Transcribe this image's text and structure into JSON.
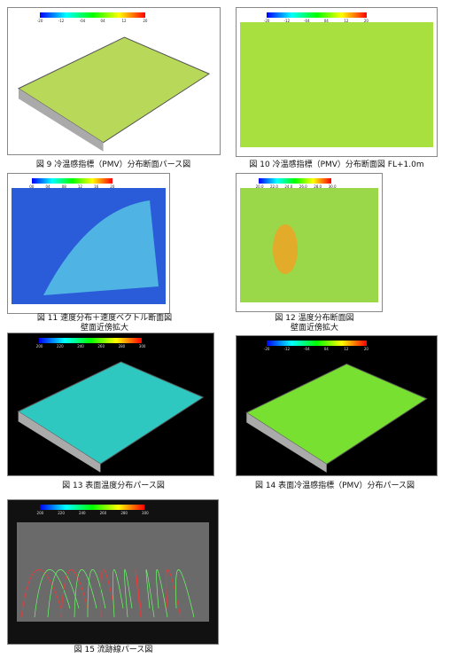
{
  "figures": [
    {
      "caption": [
        "図 9  冷温感指標（PMV）分布断面パース図"
      ],
      "scale": [
        "-20",
        "-12",
        "-04",
        "04",
        "12",
        "20"
      ]
    },
    {
      "caption": [
        "図 10  冷温感指標（PMV）分布断面図  FL+1.0m"
      ],
      "scale": [
        "-20",
        "-12",
        "-04",
        "04",
        "12",
        "20"
      ]
    },
    {
      "caption": [
        "図 11  速度分布＋速度ベクトル断面図",
        "壁面近傍拡大"
      ],
      "scale": [
        "00",
        "04",
        "08",
        "12",
        "16",
        "20"
      ]
    },
    {
      "caption": [
        "図 12  温度分布断面図",
        "壁面近傍拡大"
      ],
      "scale": [
        "20.0",
        "22.0",
        "24.0",
        "26.0",
        "28.0",
        "30.0"
      ]
    },
    {
      "caption": [
        "図 13  表面温度分布パース図"
      ],
      "scale": [
        "200",
        "220",
        "240",
        "260",
        "280",
        "300"
      ]
    },
    {
      "caption": [
        "図 14  表面冷温感指標（PMV）分布パース図"
      ],
      "scale": [
        "-20",
        "-12",
        "-04",
        "04",
        "12",
        "20"
      ]
    },
    {
      "caption": [
        "図 15  流跡線パース図"
      ],
      "scale": [
        "200",
        "220",
        "240",
        "260",
        "280",
        "300"
      ]
    }
  ]
}
